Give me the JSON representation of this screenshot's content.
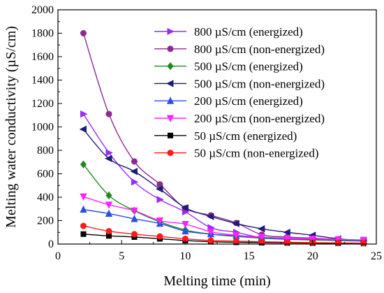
{
  "chart_data": {
    "type": "line",
    "xlabel": "Melting time (min)",
    "ylabel": "Melting water conductivity (µS/cm)",
    "xlim": [
      0,
      25
    ],
    "ylim": [
      0,
      2000
    ],
    "x_ticks": [
      0,
      5,
      10,
      15,
      20,
      25
    ],
    "y_ticks": [
      0,
      200,
      400,
      600,
      800,
      1000,
      1200,
      1400,
      1600,
      1800,
      2000
    ],
    "x_tick_labels": [
      "0",
      "5",
      "10",
      "15",
      "20",
      "25"
    ],
    "y_tick_labels": [
      "0",
      "200",
      "400",
      "600",
      "800",
      "1000",
      "1200",
      "1400",
      "1600",
      "1800",
      "2000"
    ],
    "grid": false,
    "legend_position": "top-right",
    "x": [
      2,
      4,
      6,
      8,
      10,
      12,
      14,
      16,
      18,
      20,
      22,
      24
    ],
    "series": [
      {
        "name": "800 µS/cm (energized)",
        "color": "#9a2cff",
        "marker": "triangle-right",
        "values": [
          1110,
          780,
          530,
          380,
          275,
          140,
          100,
          55,
          45,
          40,
          35,
          30
        ]
      },
      {
        "name": "800 µS/cm (non-energized)",
        "color": "#8b2a8f",
        "marker": "circle",
        "values": [
          1800,
          1110,
          705,
          510,
          305,
          245,
          180,
          80,
          60,
          50,
          40,
          30
        ]
      },
      {
        "name": "500 µS/cm (energized)",
        "color": "#1f8a1f",
        "marker": "diamond",
        "values": [
          680,
          415,
          285,
          190,
          120,
          85,
          65,
          50,
          40,
          35,
          30,
          25
        ]
      },
      {
        "name": "500 µS/cm (non-energized)",
        "color": "#1c1c7a",
        "marker": "triangle-left",
        "values": [
          980,
          730,
          620,
          470,
          310,
          235,
          175,
          130,
          100,
          75,
          45,
          30
        ]
      },
      {
        "name": "200 µS/cm (energized)",
        "color": "#2b4de0",
        "marker": "triangle-up",
        "values": [
          295,
          260,
          215,
          175,
          110,
          85,
          70,
          55,
          45,
          40,
          35,
          30
        ]
      },
      {
        "name": "200 µS/cm (non-energized)",
        "color": "#ff22ff",
        "marker": "triangle-down",
        "values": [
          405,
          335,
          285,
          200,
          170,
          105,
          75,
          60,
          50,
          45,
          40,
          35
        ]
      },
      {
        "name": "50 µS/cm (energized)",
        "color": "#000000",
        "marker": "square",
        "values": [
          85,
          70,
          60,
          45,
          30,
          20,
          15,
          12,
          10,
          8,
          7,
          5
        ]
      },
      {
        "name": "50 µS/cm (non-energized)",
        "color": "#ff1a1a",
        "marker": "circle",
        "values": [
          155,
          110,
          85,
          65,
          45,
          30,
          25,
          20,
          15,
          12,
          10,
          8
        ]
      }
    ]
  }
}
